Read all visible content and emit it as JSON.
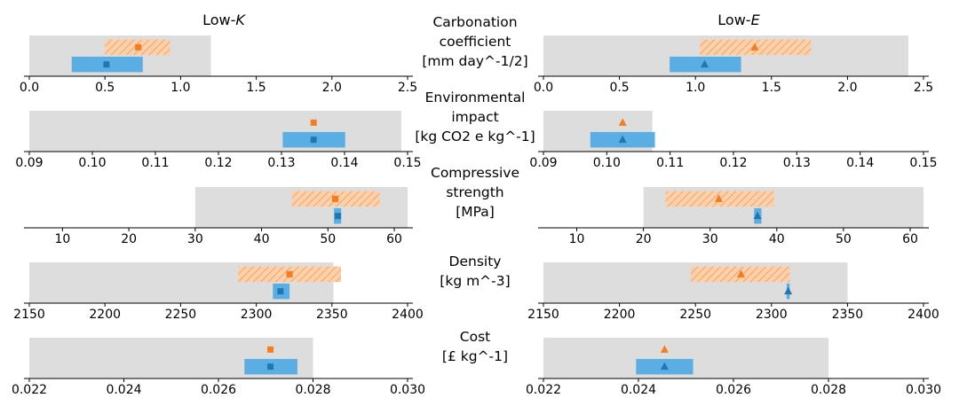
{
  "header": {
    "left_title": "Low-",
    "left_title_var": "K",
    "right_title": "Low-",
    "right_title_var": "E"
  },
  "colors": {
    "range": "#dddddd",
    "orange": "#f57c1f",
    "orange_fill": "#f7b27c",
    "blue": "#1f78b4",
    "blue_fill": "#5aaee3"
  },
  "row_labels": [
    {
      "lines": [
        "Carbonation",
        "coefficient",
        "[mm day^-1/2]"
      ]
    },
    {
      "lines": [
        "Environmental",
        "impact",
        "[kg CO2 e kg^-1]"
      ]
    },
    {
      "lines": [
        "Compressive",
        "strength",
        "[MPa]"
      ]
    },
    {
      "lines": [
        "Density",
        "[kg m^-3]"
      ]
    },
    {
      "lines": [
        "Cost",
        "[£ kg^-1]"
      ]
    }
  ],
  "chart_data": [
    {
      "type": "range",
      "title": "Carbonation coefficient",
      "panel": "Low-K",
      "xlim": [
        0.0,
        2.5
      ],
      "xticks": [
        "0.0",
        "0.5",
        "1.0",
        "1.5",
        "2.0",
        "2.5"
      ],
      "range": [
        0.0,
        1.2
      ],
      "orange": {
        "low": 0.5,
        "high": 0.93,
        "point": 0.72,
        "marker": "square"
      },
      "blue": {
        "low": 0.28,
        "high": 0.75,
        "point": 0.51,
        "marker": "square"
      }
    },
    {
      "type": "range",
      "title": "Carbonation coefficient",
      "panel": "Low-E",
      "xlim": [
        0.0,
        2.5
      ],
      "xticks": [
        "0.0",
        "0.5",
        "1.0",
        "1.5",
        "2.0",
        "2.5"
      ],
      "range": [
        0.0,
        2.4
      ],
      "orange": {
        "low": 1.03,
        "high": 1.76,
        "point": 1.39,
        "marker": "triangle"
      },
      "blue": {
        "low": 0.83,
        "high": 1.3,
        "point": 1.06,
        "marker": "triangle"
      }
    },
    {
      "type": "range",
      "title": "Environmental impact",
      "panel": "Low-K",
      "xlim": [
        0.09,
        0.15
      ],
      "xticks": [
        "0.09",
        "0.10",
        "0.11",
        "0.12",
        "0.13",
        "0.14",
        "0.15"
      ],
      "range": [
        0.09,
        0.149
      ],
      "orange": {
        "low": null,
        "high": null,
        "point": 0.1351,
        "marker": "square"
      },
      "blue": {
        "low": 0.1302,
        "high": 0.1401,
        "point": 0.1351,
        "marker": "square"
      }
    },
    {
      "type": "range",
      "title": "Environmental impact",
      "panel": "Low-E",
      "xlim": [
        0.09,
        0.15
      ],
      "xticks": [
        "0.09",
        "0.10",
        "0.11",
        "0.12",
        "0.13",
        "0.14",
        "0.15"
      ],
      "range": [
        0.09,
        0.1072
      ],
      "orange": {
        "low": null,
        "high": null,
        "point": 0.1025,
        "marker": "triangle"
      },
      "blue": {
        "low": 0.0974,
        "high": 0.1076,
        "point": 0.1025,
        "marker": "triangle"
      }
    },
    {
      "type": "range",
      "title": "Compressive strength",
      "panel": "Low-K",
      "xlim": [
        5,
        62
      ],
      "xticks": [
        "10",
        "20",
        "30",
        "40",
        "50",
        "60"
      ],
      "range": [
        30,
        62
      ],
      "orange": {
        "low": 44.6,
        "high": 57.8,
        "point": 51.1,
        "marker": "square"
      },
      "blue": {
        "low": 50.9,
        "high": 52.0,
        "point": 51.5,
        "marker": "square"
      }
    },
    {
      "type": "range",
      "title": "Compressive strength",
      "panel": "Low-E",
      "xlim": [
        5,
        62
      ],
      "xticks": [
        "10",
        "20",
        "30",
        "40",
        "50",
        "60"
      ],
      "range": [
        20,
        62
      ],
      "orange": {
        "low": 23.3,
        "high": 39.6,
        "point": 31.3,
        "marker": "triangle"
      },
      "blue": {
        "low": 36.6,
        "high": 37.7,
        "point": 37.1,
        "marker": "triangle"
      }
    },
    {
      "type": "range",
      "title": "Density",
      "panel": "Low-K",
      "xlim": [
        2150,
        2400
      ],
      "xticks": [
        "2150",
        "2200",
        "2250",
        "2300",
        "2350",
        "2400"
      ],
      "range": [
        2150,
        2351
      ],
      "orange": {
        "low": 2288,
        "high": 2356,
        "point": 2322,
        "marker": "square"
      },
      "blue": {
        "low": 2311,
        "high": 2322,
        "point": 2316,
        "marker": "square"
      }
    },
    {
      "type": "range",
      "title": "Density",
      "panel": "Low-E",
      "xlim": [
        2150,
        2400
      ],
      "xticks": [
        "2150",
        "2200",
        "2250",
        "2300",
        "2350",
        "2400"
      ],
      "range": [
        2150,
        2350
      ],
      "orange": {
        "low": 2247,
        "high": 2312,
        "point": 2280,
        "marker": "triangle"
      },
      "blue": {
        "low": 2310,
        "high": 2312,
        "point": 2311,
        "marker": "triangle"
      }
    },
    {
      "type": "range",
      "title": "Cost",
      "panel": "Low-K",
      "xlim": [
        0.022,
        0.03
      ],
      "xticks": [
        "0.022",
        "0.024",
        "0.026",
        "0.028",
        "0.030"
      ],
      "range": [
        0.022,
        0.028
      ],
      "orange": {
        "low": null,
        "high": null,
        "point": 0.0271,
        "marker": "square"
      },
      "blue": {
        "low": 0.02655,
        "high": 0.02767,
        "point": 0.0271,
        "marker": "square"
      }
    },
    {
      "type": "range",
      "title": "Cost",
      "panel": "Low-E",
      "xlim": [
        0.022,
        0.03
      ],
      "xticks": [
        "0.022",
        "0.024",
        "0.026",
        "0.028",
        "0.030"
      ],
      "range": [
        0.022,
        0.028
      ],
      "orange": {
        "low": null,
        "high": null,
        "point": 0.02455,
        "marker": "triangle"
      },
      "blue": {
        "low": 0.02395,
        "high": 0.02515,
        "point": 0.02455,
        "marker": "triangle"
      }
    }
  ]
}
